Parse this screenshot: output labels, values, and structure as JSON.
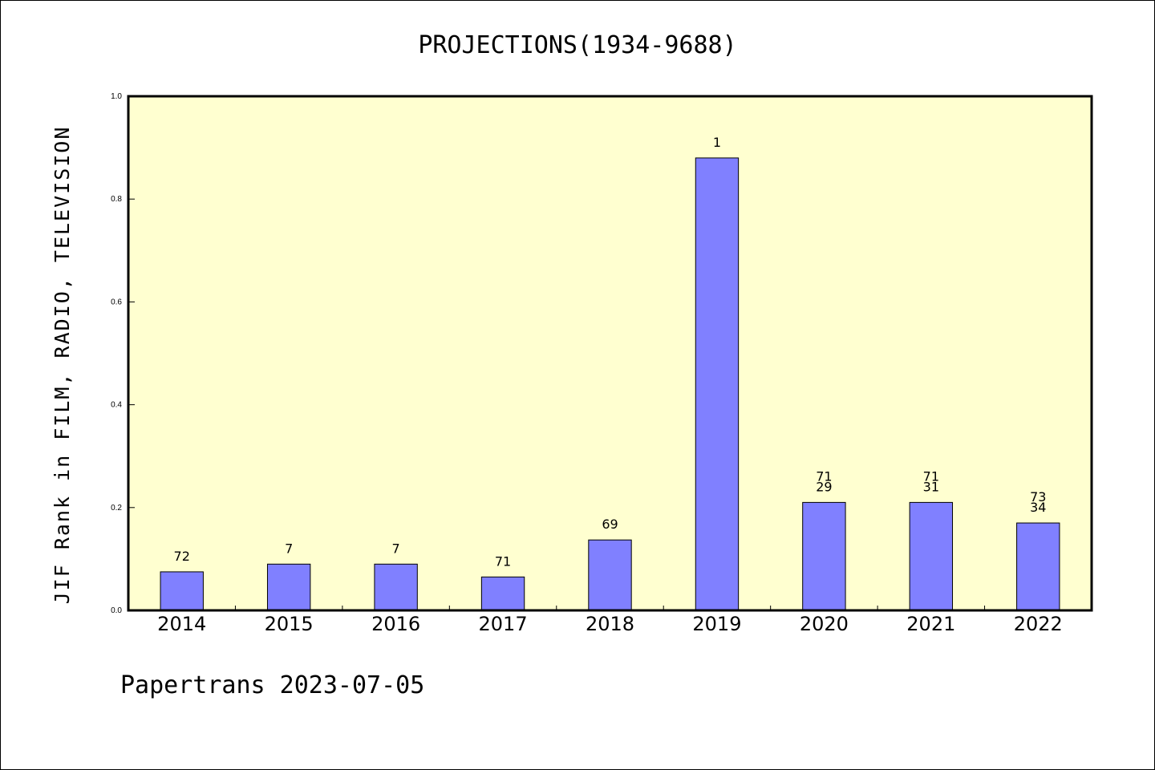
{
  "chart_data": {
    "type": "bar",
    "title": "PROJECTIONS(1934-9688)",
    "ylabel": "JIF Rank in FILM, RADIO, TELEVISION",
    "xlabel": "",
    "ylim": [
      0,
      1.0
    ],
    "yticks": [
      "0.0",
      "0.2",
      "0.4",
      "0.6",
      "0.8",
      "1.0"
    ],
    "categories": [
      "2014",
      "2015",
      "2016",
      "2017",
      "2018",
      "2019",
      "2020",
      "2021",
      "2022"
    ],
    "values": [
      0.075,
      0.09,
      0.09,
      0.065,
      0.137,
      0.88,
      0.21,
      0.21,
      0.17
    ],
    "data_labels": [
      [
        "72"
      ],
      [
        "7"
      ],
      [
        "7"
      ],
      [
        "71"
      ],
      [
        "69"
      ],
      [
        "1"
      ],
      [
        "71",
        "29"
      ],
      [
        "71",
        "31"
      ],
      [
        "73",
        "34"
      ]
    ],
    "colors": {
      "plot_background": "#ffffd0",
      "bar_fill": "#8080ff",
      "bar_stroke": "#000000"
    },
    "grid": false
  },
  "footer": "Papertrans 2023-07-05"
}
